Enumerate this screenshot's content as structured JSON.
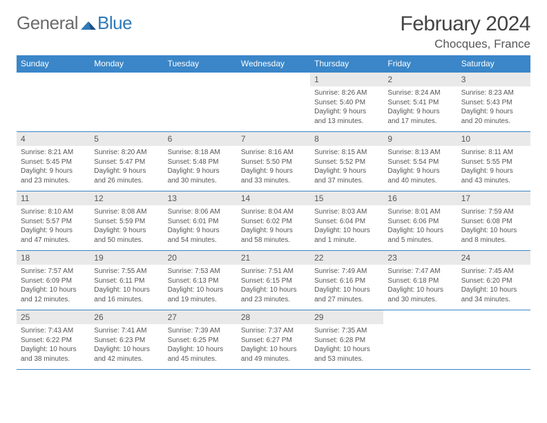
{
  "brand": {
    "part1": "General",
    "part2": "Blue"
  },
  "title": "February 2024",
  "location": "Chocques, France",
  "colors": {
    "header_bg": "#3a86c8",
    "header_text": "#ffffff",
    "daynum_bg": "#e9e9e9",
    "border": "#3a86c8",
    "body_text": "#555555",
    "brand_gray": "#6b6b6b",
    "brand_blue": "#2f79b9",
    "page_bg": "#ffffff"
  },
  "typography": {
    "title_fontsize": 30,
    "location_fontsize": 17,
    "header_fontsize": 12,
    "daynum_fontsize": 12,
    "body_fontsize": 10,
    "logo_fontsize": 26
  },
  "weekdays": [
    "Sunday",
    "Monday",
    "Tuesday",
    "Wednesday",
    "Thursday",
    "Friday",
    "Saturday"
  ],
  "weeks": [
    [
      {
        "n": "",
        "lines": []
      },
      {
        "n": "",
        "lines": []
      },
      {
        "n": "",
        "lines": []
      },
      {
        "n": "",
        "lines": []
      },
      {
        "n": "1",
        "lines": [
          "Sunrise: 8:26 AM",
          "Sunset: 5:40 PM",
          "Daylight: 9 hours",
          "and 13 minutes."
        ]
      },
      {
        "n": "2",
        "lines": [
          "Sunrise: 8:24 AM",
          "Sunset: 5:41 PM",
          "Daylight: 9 hours",
          "and 17 minutes."
        ]
      },
      {
        "n": "3",
        "lines": [
          "Sunrise: 8:23 AM",
          "Sunset: 5:43 PM",
          "Daylight: 9 hours",
          "and 20 minutes."
        ]
      }
    ],
    [
      {
        "n": "4",
        "lines": [
          "Sunrise: 8:21 AM",
          "Sunset: 5:45 PM",
          "Daylight: 9 hours",
          "and 23 minutes."
        ]
      },
      {
        "n": "5",
        "lines": [
          "Sunrise: 8:20 AM",
          "Sunset: 5:47 PM",
          "Daylight: 9 hours",
          "and 26 minutes."
        ]
      },
      {
        "n": "6",
        "lines": [
          "Sunrise: 8:18 AM",
          "Sunset: 5:48 PM",
          "Daylight: 9 hours",
          "and 30 minutes."
        ]
      },
      {
        "n": "7",
        "lines": [
          "Sunrise: 8:16 AM",
          "Sunset: 5:50 PM",
          "Daylight: 9 hours",
          "and 33 minutes."
        ]
      },
      {
        "n": "8",
        "lines": [
          "Sunrise: 8:15 AM",
          "Sunset: 5:52 PM",
          "Daylight: 9 hours",
          "and 37 minutes."
        ]
      },
      {
        "n": "9",
        "lines": [
          "Sunrise: 8:13 AM",
          "Sunset: 5:54 PM",
          "Daylight: 9 hours",
          "and 40 minutes."
        ]
      },
      {
        "n": "10",
        "lines": [
          "Sunrise: 8:11 AM",
          "Sunset: 5:55 PM",
          "Daylight: 9 hours",
          "and 43 minutes."
        ]
      }
    ],
    [
      {
        "n": "11",
        "lines": [
          "Sunrise: 8:10 AM",
          "Sunset: 5:57 PM",
          "Daylight: 9 hours",
          "and 47 minutes."
        ]
      },
      {
        "n": "12",
        "lines": [
          "Sunrise: 8:08 AM",
          "Sunset: 5:59 PM",
          "Daylight: 9 hours",
          "and 50 minutes."
        ]
      },
      {
        "n": "13",
        "lines": [
          "Sunrise: 8:06 AM",
          "Sunset: 6:01 PM",
          "Daylight: 9 hours",
          "and 54 minutes."
        ]
      },
      {
        "n": "14",
        "lines": [
          "Sunrise: 8:04 AM",
          "Sunset: 6:02 PM",
          "Daylight: 9 hours",
          "and 58 minutes."
        ]
      },
      {
        "n": "15",
        "lines": [
          "Sunrise: 8:03 AM",
          "Sunset: 6:04 PM",
          "Daylight: 10 hours",
          "and 1 minute."
        ]
      },
      {
        "n": "16",
        "lines": [
          "Sunrise: 8:01 AM",
          "Sunset: 6:06 PM",
          "Daylight: 10 hours",
          "and 5 minutes."
        ]
      },
      {
        "n": "17",
        "lines": [
          "Sunrise: 7:59 AM",
          "Sunset: 6:08 PM",
          "Daylight: 10 hours",
          "and 8 minutes."
        ]
      }
    ],
    [
      {
        "n": "18",
        "lines": [
          "Sunrise: 7:57 AM",
          "Sunset: 6:09 PM",
          "Daylight: 10 hours",
          "and 12 minutes."
        ]
      },
      {
        "n": "19",
        "lines": [
          "Sunrise: 7:55 AM",
          "Sunset: 6:11 PM",
          "Daylight: 10 hours",
          "and 16 minutes."
        ]
      },
      {
        "n": "20",
        "lines": [
          "Sunrise: 7:53 AM",
          "Sunset: 6:13 PM",
          "Daylight: 10 hours",
          "and 19 minutes."
        ]
      },
      {
        "n": "21",
        "lines": [
          "Sunrise: 7:51 AM",
          "Sunset: 6:15 PM",
          "Daylight: 10 hours",
          "and 23 minutes."
        ]
      },
      {
        "n": "22",
        "lines": [
          "Sunrise: 7:49 AM",
          "Sunset: 6:16 PM",
          "Daylight: 10 hours",
          "and 27 minutes."
        ]
      },
      {
        "n": "23",
        "lines": [
          "Sunrise: 7:47 AM",
          "Sunset: 6:18 PM",
          "Daylight: 10 hours",
          "and 30 minutes."
        ]
      },
      {
        "n": "24",
        "lines": [
          "Sunrise: 7:45 AM",
          "Sunset: 6:20 PM",
          "Daylight: 10 hours",
          "and 34 minutes."
        ]
      }
    ],
    [
      {
        "n": "25",
        "lines": [
          "Sunrise: 7:43 AM",
          "Sunset: 6:22 PM",
          "Daylight: 10 hours",
          "and 38 minutes."
        ]
      },
      {
        "n": "26",
        "lines": [
          "Sunrise: 7:41 AM",
          "Sunset: 6:23 PM",
          "Daylight: 10 hours",
          "and 42 minutes."
        ]
      },
      {
        "n": "27",
        "lines": [
          "Sunrise: 7:39 AM",
          "Sunset: 6:25 PM",
          "Daylight: 10 hours",
          "and 45 minutes."
        ]
      },
      {
        "n": "28",
        "lines": [
          "Sunrise: 7:37 AM",
          "Sunset: 6:27 PM",
          "Daylight: 10 hours",
          "and 49 minutes."
        ]
      },
      {
        "n": "29",
        "lines": [
          "Sunrise: 7:35 AM",
          "Sunset: 6:28 PM",
          "Daylight: 10 hours",
          "and 53 minutes."
        ]
      },
      {
        "n": "",
        "lines": []
      },
      {
        "n": "",
        "lines": []
      }
    ]
  ]
}
